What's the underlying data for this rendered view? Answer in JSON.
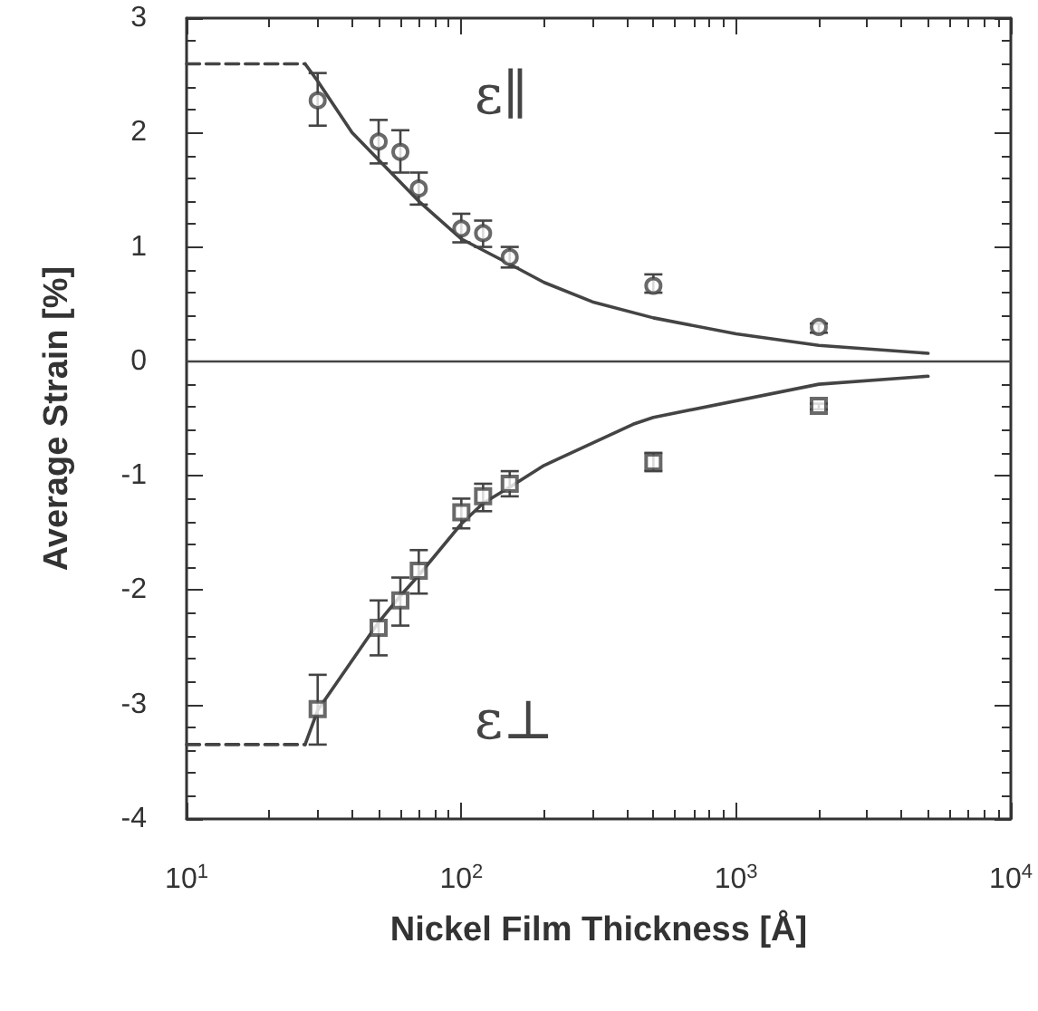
{
  "chart_data": {
    "type": "scatter",
    "xlabel": "Nickel Film Thickness [Å]",
    "ylabel": "Average Strain [%]",
    "log": "x",
    "xlim": [
      10,
      10000
    ],
    "xticks": [
      {
        "value": 10,
        "label": "10$^{1}$"
      },
      {
        "value": 100,
        "label": "10$^{2}$"
      },
      {
        "value": 1000,
        "label": "10$^{3}$"
      },
      {
        "value": 10000,
        "label": "10$^{4}$"
      }
    ],
    "ylim": [
      -4,
      3
    ],
    "yticks": [
      -4,
      -3,
      -2,
      -1,
      0,
      1,
      2,
      3
    ],
    "grid": false,
    "series": [
      {
        "marker": "circle",
        "color": "#444444",
        "x": [
          30,
          50,
          60,
          70,
          100,
          120,
          150,
          500,
          2000
        ],
        "values": [
          2.28,
          1.92,
          1.83,
          1.51,
          1.16,
          1.12,
          0.91,
          0.66,
          0.3
        ],
        "errors": [
          [
            2.06,
            2.52
          ],
          [
            1.73,
            2.11
          ],
          [
            1.65,
            2.02
          ],
          [
            1.37,
            1.65
          ],
          [
            1.04,
            1.29
          ],
          [
            1.0,
            1.23
          ],
          [
            0.82,
            1.0
          ],
          [
            0.6,
            0.76
          ],
          [
            0.25,
            0.33
          ]
        ]
      },
      {
        "marker": "square",
        "color": "#444444",
        "x": [
          30,
          50,
          60,
          70,
          100,
          120,
          150,
          500,
          2000
        ],
        "values": [
          -3.04,
          -2.33,
          -2.09,
          -1.83,
          -1.32,
          -1.18,
          -1.07,
          -0.88,
          -0.39
        ],
        "errors": [
          [
            -3.35,
            -2.74
          ],
          [
            -2.57,
            -2.09
          ],
          [
            -2.31,
            -1.89
          ],
          [
            -2.03,
            -1.65
          ],
          [
            -1.46,
            -1.2
          ],
          [
            -1.31,
            -1.07
          ],
          [
            -1.18,
            -0.96
          ],
          [
            -0.96,
            -0.8
          ],
          [
            -0.42,
            -0.37
          ]
        ]
      },
      {
        "type": "line",
        "marker": "none",
        "line_style": "solid",
        "color": "#444444",
        "x": [
          27,
          30,
          40,
          50,
          70,
          100,
          150,
          200,
          300,
          500,
          1000,
          2000,
          5000
        ],
        "values": [
          2.6,
          2.45,
          2.0,
          1.76,
          1.4,
          1.07,
          0.85,
          0.69,
          0.52,
          0.38,
          0.24,
          0.14,
          0.07
        ]
      },
      {
        "type": "line",
        "marker": "none",
        "line_style": "solid",
        "color": "#444444",
        "x": [
          27,
          30,
          50,
          60,
          70,
          100,
          120,
          150,
          200,
          422,
          500,
          2000,
          5000
        ],
        "values": [
          -3.35,
          -3.05,
          -2.28,
          -2.05,
          -1.87,
          -1.42,
          -1.24,
          -1.1,
          -0.91,
          -0.55,
          -0.49,
          -0.2,
          -0.13
        ]
      },
      {
        "type": "line",
        "marker": "none",
        "line_style": "dashed",
        "color": "#444444",
        "x": [
          10,
          27
        ],
        "values": [
          2.6,
          2.6
        ]
      },
      {
        "type": "line",
        "marker": "none",
        "line_style": "dashed",
        "color": "#444444",
        "x": [
          10,
          27
        ],
        "values": [
          -3.35,
          -3.35
        ]
      }
    ],
    "ref_lines": [
      {
        "axis": "y",
        "value": 0,
        "color": "#444444"
      }
    ],
    "annotations": [
      "ε∥",
      "ε⊥"
    ]
  }
}
